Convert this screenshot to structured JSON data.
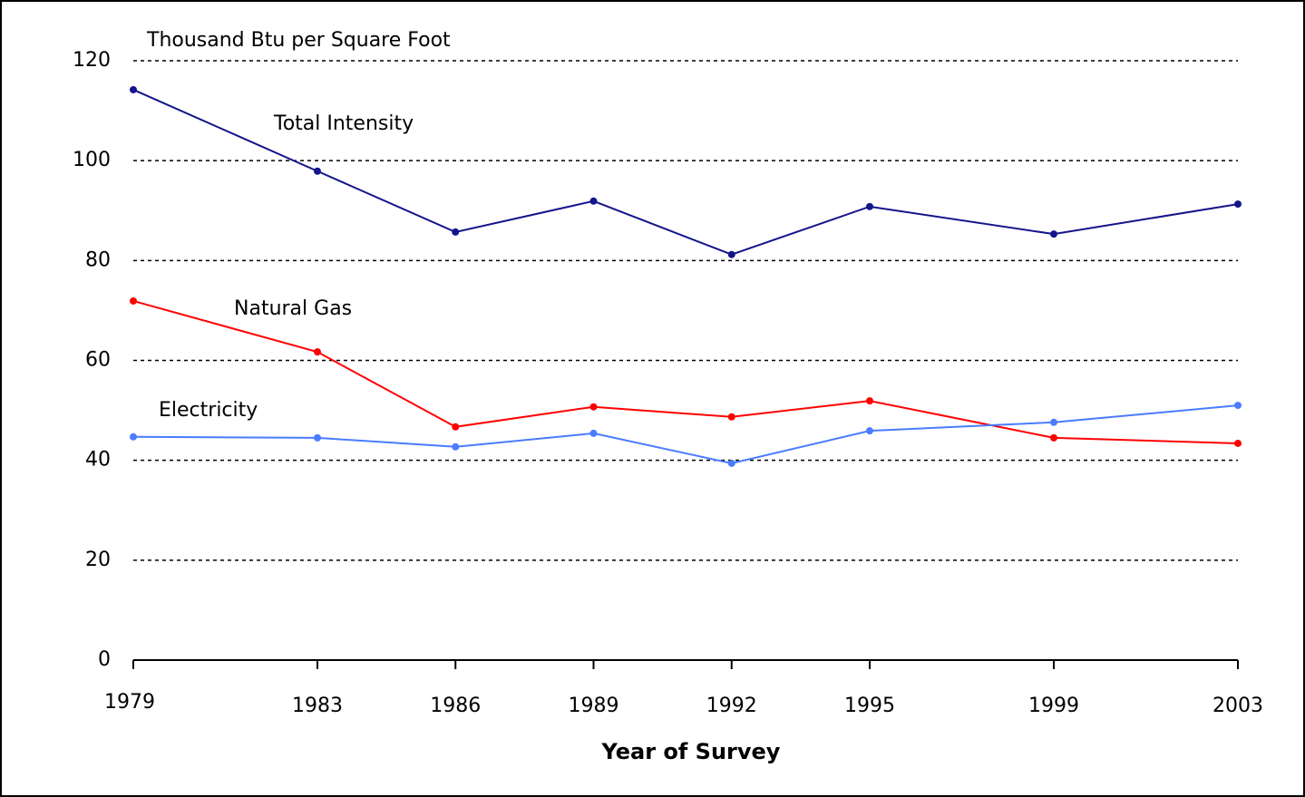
{
  "chart_data": {
    "type": "line",
    "y_axis_label": "Thousand Btu per Square Foot",
    "x_axis_label": "Year of Survey",
    "x": [
      1979,
      1983,
      1986,
      1989,
      1992,
      1995,
      1999,
      2003
    ],
    "xlim": [
      1979,
      2003
    ],
    "xticks": [
      1979,
      1983,
      1986,
      1989,
      1992,
      1995,
      1999,
      2003
    ],
    "ylim": [
      0,
      120
    ],
    "yticks": [
      0,
      20,
      40,
      60,
      80,
      100,
      120
    ],
    "grid": true,
    "series": [
      {
        "name": "Total Intensity",
        "color": "#14148c",
        "values": [
          114.2,
          97.9,
          85.7,
          91.9,
          81.2,
          90.8,
          85.3,
          91.3
        ]
      },
      {
        "name": "Natural Gas",
        "color": "#ff0000",
        "values": [
          71.9,
          61.7,
          46.7,
          50.7,
          48.7,
          51.9,
          44.5,
          43.4
        ]
      },
      {
        "name": "Electricity",
        "color": "#4a7cff",
        "values": [
          44.7,
          44.5,
          42.7,
          45.4,
          39.4,
          45.9,
          47.6,
          51.0
        ]
      }
    ]
  }
}
